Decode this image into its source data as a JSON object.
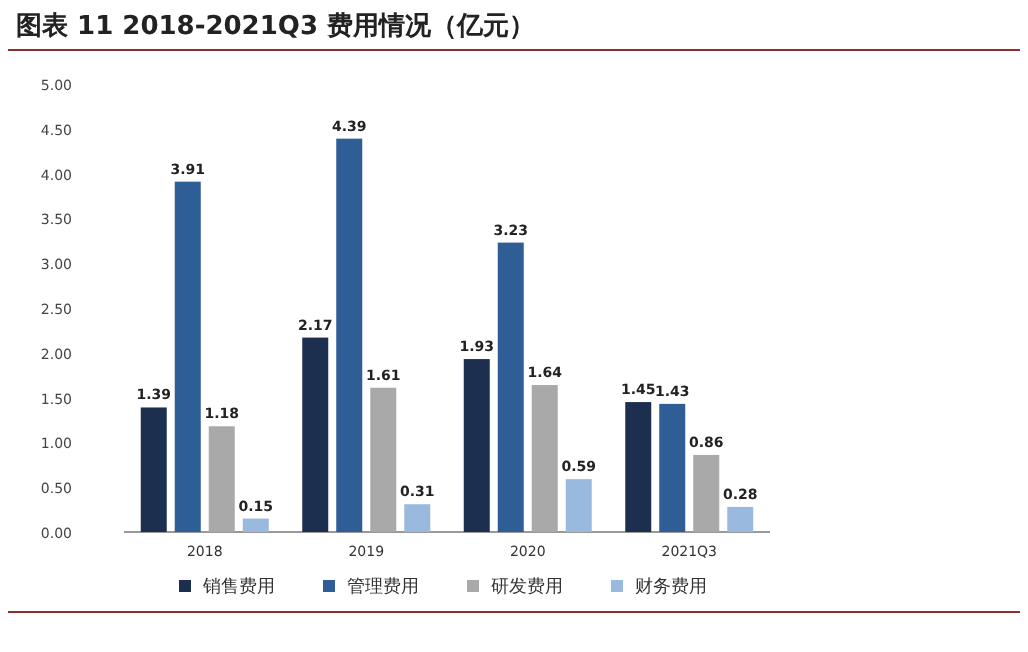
{
  "chart_data": {
    "type": "bar",
    "title": "图表 11 2018-2021Q3 费用情况（亿元）",
    "categories": [
      "2018",
      "2019",
      "2020",
      "2021Q3"
    ],
    "series": [
      {
        "name": "销售费用",
        "color": "#1c2f4f",
        "values": [
          1.39,
          2.17,
          1.93,
          1.45
        ]
      },
      {
        "name": "管理费用",
        "color": "#2f5d95",
        "values": [
          3.91,
          4.39,
          3.23,
          1.43
        ]
      },
      {
        "name": "研发费用",
        "color": "#a9a9a9",
        "values": [
          1.18,
          1.61,
          1.64,
          0.86
        ]
      },
      {
        "name": "财务费用",
        "color": "#9ab9de",
        "values": [
          0.15,
          0.31,
          0.59,
          0.28
        ]
      }
    ],
    "ylim": [
      0,
      5
    ],
    "yticks": [
      {
        "value": 0,
        "label": "0.00"
      },
      {
        "value": 0.5,
        "label": "0.50"
      },
      {
        "value": 1,
        "label": "1.00"
      },
      {
        "value": 1.5,
        "label": "1.50"
      },
      {
        "value": 2,
        "label": "2.00"
      },
      {
        "value": 2.5,
        "label": "2.50"
      },
      {
        "value": 3,
        "label": "3.00"
      },
      {
        "value": 3.5,
        "label": "3.50"
      },
      {
        "value": 4,
        "label": "4.00"
      },
      {
        "value": 4.5,
        "label": "4.50"
      },
      {
        "value": 5,
        "label": "5.00"
      }
    ],
    "data_labels": true,
    "legend": "bottom",
    "grid": false
  }
}
